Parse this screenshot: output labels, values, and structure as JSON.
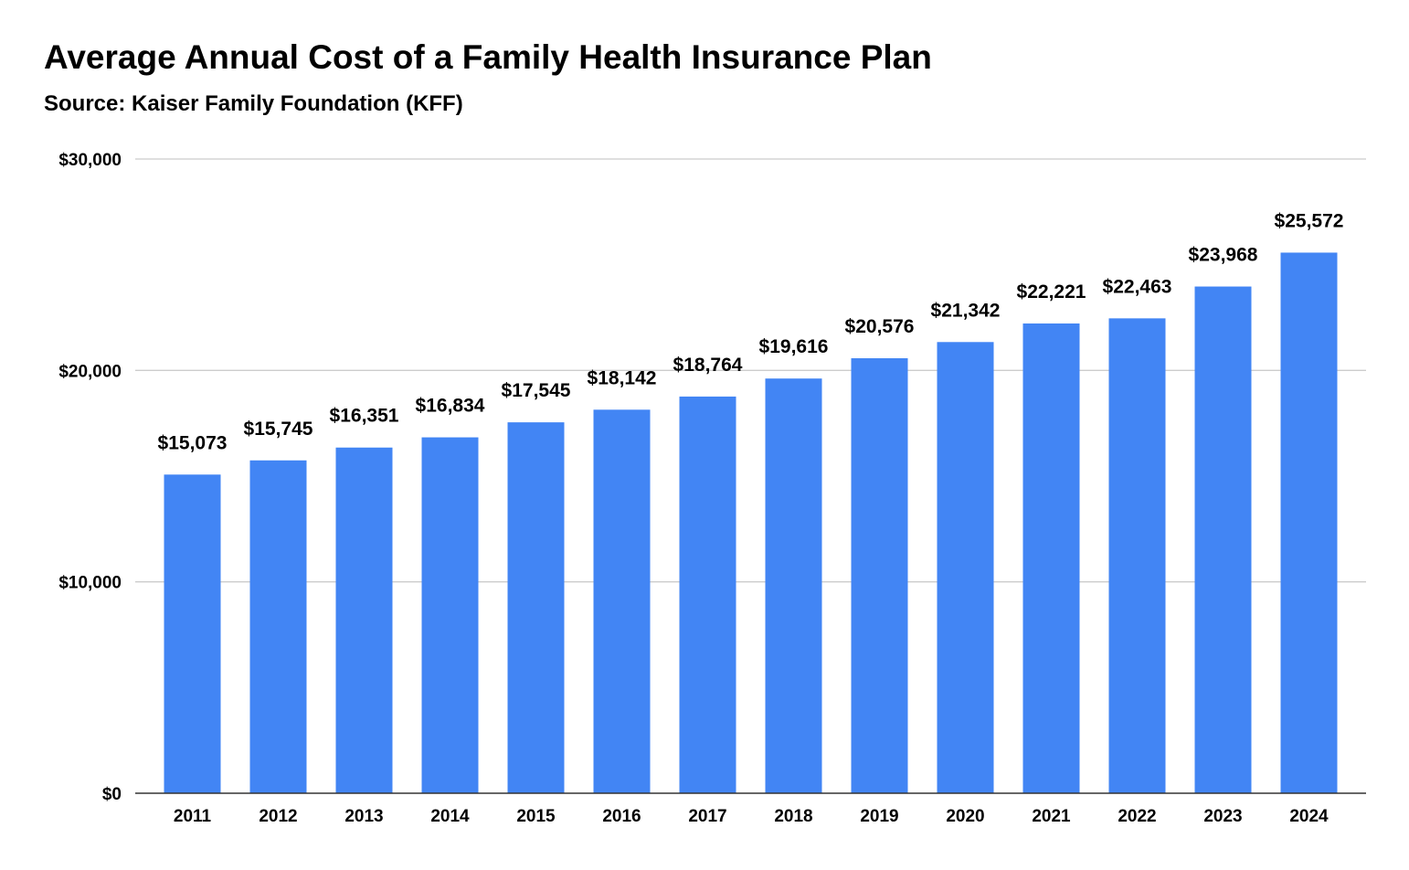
{
  "chart_data": {
    "type": "bar",
    "title": "Average Annual Cost of a Family Health Insurance Plan",
    "subtitle": "Source: Kaiser Family Foundation (KFF)",
    "xlabel": "",
    "ylabel": "",
    "categories": [
      "2011",
      "2012",
      "2013",
      "2014",
      "2015",
      "2016",
      "2017",
      "2018",
      "2019",
      "2020",
      "2021",
      "2022",
      "2023",
      "2024"
    ],
    "values": [
      15073,
      15745,
      16351,
      16834,
      17545,
      18142,
      18764,
      19616,
      20576,
      21342,
      22221,
      22463,
      23968,
      25572
    ],
    "data_labels": [
      "$15,073",
      "$15,745",
      "$16,351",
      "$16,834",
      "$17,545",
      "$18,142",
      "$18,764",
      "$19,616",
      "$20,576",
      "$21,342",
      "$22,221",
      "$22,463",
      "$23,968",
      "$25,572"
    ],
    "ylim": [
      0,
      30000
    ],
    "yticks": [
      0,
      10000,
      20000,
      30000
    ],
    "ytick_labels": [
      "$0",
      "$10,000",
      "$20,000",
      "$30,000"
    ],
    "grid": true,
    "legend": "none",
    "bar_color": "#4285f4",
    "grid_color": "#cccccc",
    "axis_color": "#333333"
  }
}
